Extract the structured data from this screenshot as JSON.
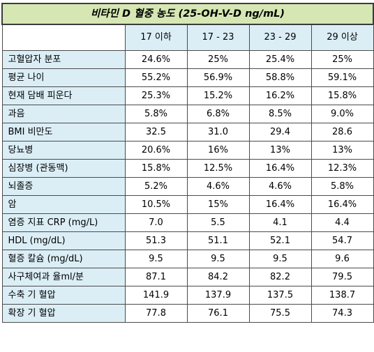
{
  "title": "비타민 D 혈중 농도 (25-OH-V-D ng/mL)",
  "columns": [
    "17 이하",
    "17 - 23",
    "23 - 29",
    "29 이상"
  ],
  "rows": [
    {
      "label": "고혈압자 분포",
      "values": [
        "24.6%",
        "25%",
        "25.4%",
        "25%"
      ]
    },
    {
      "label": "평균 나이",
      "values": [
        "55.2%",
        "56.9%",
        "58.8%",
        "59.1%"
      ]
    },
    {
      "label": "현재 담배 피운다",
      "values": [
        "25.3%",
        "15.2%",
        "16.2%",
        "15.8%"
      ]
    },
    {
      "label": "과음",
      "values": [
        "5.8%",
        "6.8%",
        "8.5%",
        "9.0%"
      ]
    },
    {
      "label": "BMI 비만도",
      "values": [
        "32.5",
        "31.0",
        "29.4",
        "28.6"
      ]
    },
    {
      "label": "당뇨병",
      "values": [
        "20.6%",
        "16%",
        "13%",
        "13%"
      ]
    },
    {
      "label": "심장병 (관동맥)",
      "values": [
        "15.8%",
        "12.5%",
        "16.4%",
        "12.3%"
      ]
    },
    {
      "label": "뇌졸증",
      "values": [
        "5.2%",
        "4.6%",
        "4.6%",
        "5.8%"
      ]
    },
    {
      "label": "암",
      "values": [
        "10.5%",
        "15%",
        "16.4%",
        "16.4%"
      ]
    },
    {
      "label": "염증 지표 CRP (mg/L)",
      "values": [
        "7.0",
        "5.5",
        "4.1",
        "4.4"
      ]
    },
    {
      "label": "HDL (mg/dL)",
      "values": [
        "51.3",
        "51.1",
        "52.1",
        "54.7"
      ]
    },
    {
      "label": "혈증 칼슘 (mg/dL)",
      "values": [
        "9.5",
        "9.5",
        "9.5",
        "9.6"
      ]
    },
    {
      "label": "사구체여과 율ml/분",
      "values": [
        "87.1",
        "84.2",
        "82.2",
        "79.5"
      ]
    },
    {
      "label": "수축 기 혈압",
      "values": [
        "141.9",
        "137.9",
        "137.5",
        "138.7"
      ]
    },
    {
      "label": "확장 기 혈압",
      "values": [
        "77.8",
        "76.1",
        "75.5",
        "74.3"
      ]
    }
  ]
}
